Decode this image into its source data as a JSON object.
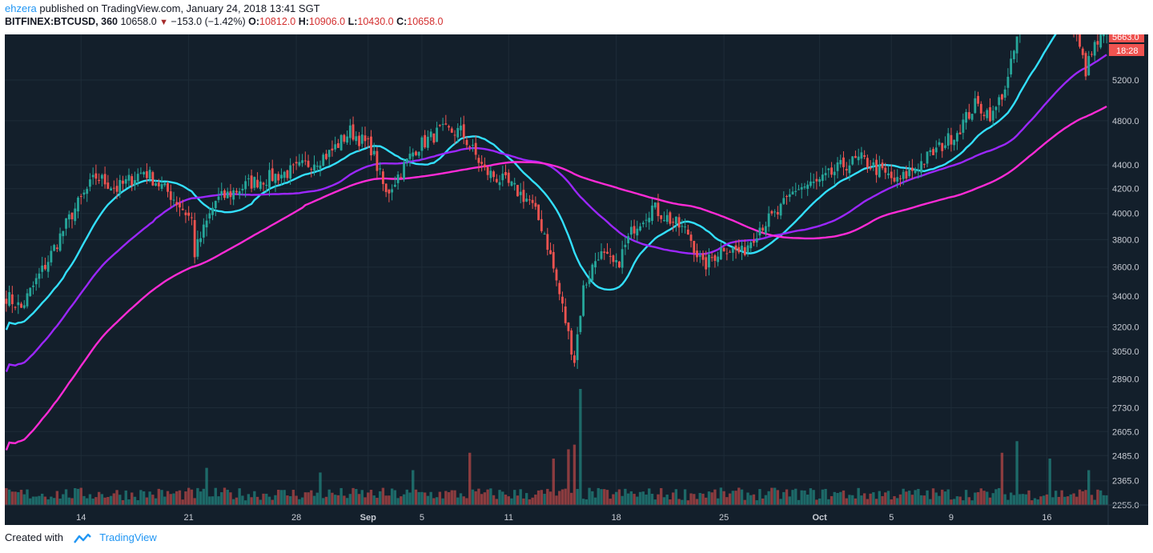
{
  "header": {
    "author": "ehzera",
    "published_text": " published on TradingView.com, January 24, 2018 13:41 SGT",
    "symbol": "BITFINEX:BTCUSD, 360",
    "last": "10658.0",
    "change": "−153.0 (−1.42%)",
    "open_label": "O:",
    "open": "10812.0",
    "high_label": "H:",
    "high": "10906.0",
    "low_label": "L:",
    "low": "10430.0",
    "close_label": "C:",
    "close": "10658.0"
  },
  "footer": {
    "created_with": "Created with",
    "brand": "TradingView"
  },
  "colors": {
    "background": "#131f2b",
    "grid": "#1e2c38",
    "up": "#26a69a",
    "down": "#ef5350",
    "ma_fast": "#33e0ff",
    "ma_mid": "#9c27ff",
    "ma_slow": "#ff2bd6",
    "tag_current": "#ef5350"
  },
  "chart_data": {
    "type": "candlestick",
    "y_scale": "log",
    "price_tick_labels": [
      "5200.0",
      "4800.0",
      "4400.0",
      "4200.0",
      "4000.0",
      "3800.0",
      "3600.0",
      "3400.0",
      "3200.0",
      "3050.0",
      "2890.0",
      "2730.0",
      "2605.0",
      "2485.0",
      "2365.0",
      "2255.0"
    ],
    "date_tick_labels": [
      "14",
      "21",
      "28",
      "Sep",
      "5",
      "11",
      "18",
      "25",
      "Oct",
      "5",
      "9",
      "16"
    ],
    "current_price_tag": "5663.0",
    "countdown_tag": "18:28",
    "anchors": [
      {
        "bar": 0,
        "close": 3400
      },
      {
        "bar": 5,
        "close": 3320
      },
      {
        "bar": 14,
        "close": 3650
      },
      {
        "bar": 22,
        "close": 4000
      },
      {
        "bar": 30,
        "close": 4300
      },
      {
        "bar": 37,
        "close": 4200
      },
      {
        "bar": 46,
        "close": 4350
      },
      {
        "bar": 55,
        "close": 4150
      },
      {
        "bar": 62,
        "close": 3950
      },
      {
        "bar": 63,
        "close": 3700
      },
      {
        "bar": 70,
        "close": 4100
      },
      {
        "bar": 82,
        "close": 4250
      },
      {
        "bar": 96,
        "close": 4350
      },
      {
        "bar": 108,
        "close": 4500
      },
      {
        "bar": 115,
        "close": 4700
      },
      {
        "bar": 122,
        "close": 4550
      },
      {
        "bar": 127,
        "close": 4150
      },
      {
        "bar": 137,
        "close": 4550
      },
      {
        "bar": 145,
        "close": 4700
      },
      {
        "bar": 152,
        "close": 4700
      },
      {
        "bar": 160,
        "close": 4350
      },
      {
        "bar": 167,
        "close": 4250
      },
      {
        "bar": 175,
        "close": 4100
      },
      {
        "bar": 180,
        "close": 3850
      },
      {
        "bar": 184,
        "close": 3500
      },
      {
        "bar": 188,
        "close": 3150
      },
      {
        "bar": 190,
        "close": 3000
      },
      {
        "bar": 193,
        "close": 3450
      },
      {
        "bar": 198,
        "close": 3700
      },
      {
        "bar": 204,
        "close": 3600
      },
      {
        "bar": 210,
        "close": 3900
      },
      {
        "bar": 216,
        "close": 4050
      },
      {
        "bar": 222,
        "close": 3950
      },
      {
        "bar": 228,
        "close": 3850
      },
      {
        "bar": 233,
        "close": 3600
      },
      {
        "bar": 240,
        "close": 3750
      },
      {
        "bar": 246,
        "close": 3700
      },
      {
        "bar": 252,
        "close": 3900
      },
      {
        "bar": 258,
        "close": 4000
      },
      {
        "bar": 264,
        "close": 4200
      },
      {
        "bar": 272,
        "close": 4250
      },
      {
        "bar": 280,
        "close": 4400
      },
      {
        "bar": 286,
        "close": 4450
      },
      {
        "bar": 292,
        "close": 4350
      },
      {
        "bar": 298,
        "close": 4250
      },
      {
        "bar": 305,
        "close": 4400
      },
      {
        "bar": 312,
        "close": 4550
      },
      {
        "bar": 318,
        "close": 4700
      },
      {
        "bar": 324,
        "close": 4950
      },
      {
        "bar": 330,
        "close": 4850
      },
      {
        "bar": 335,
        "close": 5200
      },
      {
        "bar": 339,
        "close": 5800
      },
      {
        "bar": 346,
        "close": 6000
      },
      {
        "bar": 352,
        "close": 5900
      },
      {
        "bar": 357,
        "close": 5750
      },
      {
        "bar": 361,
        "close": 5300
      },
      {
        "bar": 364,
        "close": 5550
      },
      {
        "bar": 368,
        "close": 5700
      }
    ],
    "bar_count": 369,
    "volume_spikes": [
      {
        "bar": 190,
        "volume": 0.52
      },
      {
        "bar": 192,
        "volume": 1.0
      },
      {
        "bar": 188,
        "volume": 0.48
      },
      {
        "bar": 155,
        "volume": 0.45
      },
      {
        "bar": 183,
        "volume": 0.4
      },
      {
        "bar": 333,
        "volume": 0.45
      },
      {
        "bar": 338,
        "volume": 0.55
      },
      {
        "bar": 349,
        "volume": 0.4
      },
      {
        "bar": 105,
        "volume": 0.28
      },
      {
        "bar": 136,
        "volume": 0.3
      },
      {
        "bar": 67,
        "volume": 0.32
      },
      {
        "bar": 362,
        "volume": 0.3
      }
    ],
    "moving_averages": [
      {
        "period": 20,
        "color_key": "ma_fast"
      },
      {
        "period": 50,
        "color_key": "ma_mid"
      },
      {
        "period": 100,
        "color_key": "ma_slow"
      }
    ]
  }
}
